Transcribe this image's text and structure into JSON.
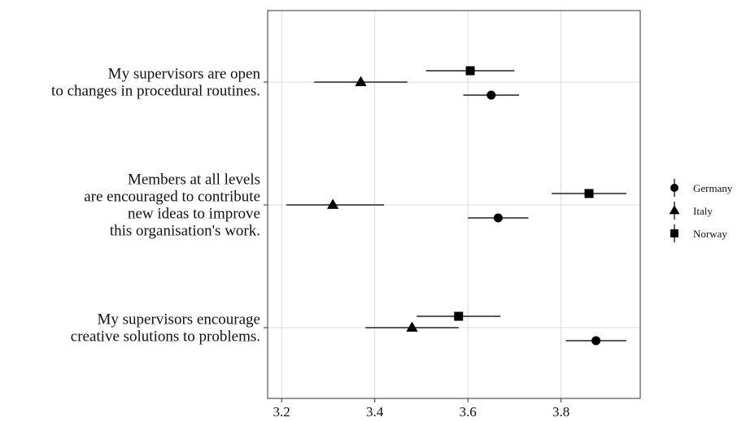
{
  "chart_data": {
    "type": "scatter",
    "subtype": "dot-plot-with-error-bars",
    "title": "",
    "xlabel": "",
    "ylabel": "",
    "xlim": [
      3.17,
      3.97
    ],
    "xticks": [
      3.2,
      3.4,
      3.6,
      3.8
    ],
    "xtick_labels": [
      "3.2",
      "3.4",
      "3.6",
      "3.8"
    ],
    "grid": true,
    "legend_position": "right",
    "categories": [
      {
        "lines": [
          "My supervisors are open",
          "to changes in procedural routines."
        ]
      },
      {
        "lines": [
          "Members at all levels",
          "are encouraged to contribute",
          "new ideas to improve",
          "this organisation's work."
        ]
      },
      {
        "lines": [
          "My supervisors encourage",
          "creative solutions to problems."
        ]
      }
    ],
    "series": [
      {
        "name": "Germany",
        "marker": "circle",
        "points": [
          {
            "category": 0,
            "x": 3.65,
            "lo": 3.59,
            "hi": 3.71
          },
          {
            "category": 1,
            "x": 3.665,
            "lo": 3.6,
            "hi": 3.73
          },
          {
            "category": 2,
            "x": 3.875,
            "lo": 3.81,
            "hi": 3.94
          }
        ]
      },
      {
        "name": "Italy",
        "marker": "triangle",
        "points": [
          {
            "category": 0,
            "x": 3.37,
            "lo": 3.27,
            "hi": 3.47
          },
          {
            "category": 1,
            "x": 3.31,
            "lo": 3.21,
            "hi": 3.42
          },
          {
            "category": 2,
            "x": 3.48,
            "lo": 3.38,
            "hi": 3.58
          }
        ]
      },
      {
        "name": "Norway",
        "marker": "square",
        "points": [
          {
            "category": 0,
            "x": 3.605,
            "lo": 3.51,
            "hi": 3.7
          },
          {
            "category": 1,
            "x": 3.86,
            "lo": 3.78,
            "hi": 3.94
          },
          {
            "category": 2,
            "x": 3.58,
            "lo": 3.49,
            "hi": 3.67
          }
        ]
      }
    ]
  }
}
